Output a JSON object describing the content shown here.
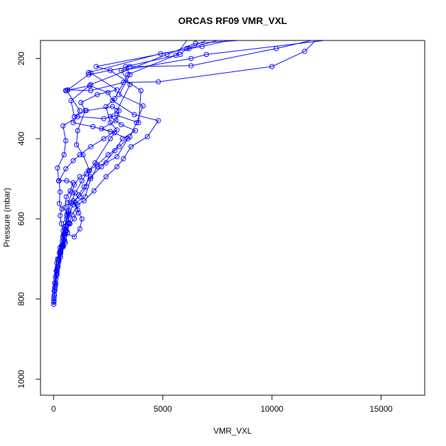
{
  "chart_data": {
    "type": "line",
    "title": "ORCAS RF09 VMR_VXL",
    "xlabel": "VMR_VXL",
    "ylabel": "Pressure (mbar)",
    "xlim": [
      -600,
      17000
    ],
    "ylim": [
      1040,
      155
    ],
    "y_reversed": true,
    "grid": false,
    "x_ticks": [
      0,
      5000,
      10000,
      15000
    ],
    "y_ticks": [
      200,
      400,
      600,
      800,
      1000
    ],
    "series_color": "#0000ff",
    "series": [
      {
        "values": [
          [
            10,
            813
          ],
          [
            15,
            805
          ],
          [
            20,
            795
          ],
          [
            25,
            780
          ],
          [
            50,
            760
          ],
          [
            90,
            745
          ],
          [
            120,
            730
          ],
          [
            150,
            710
          ],
          [
            180,
            700
          ],
          [
            260,
            685
          ],
          [
            300,
            672
          ],
          [
            350,
            668
          ],
          [
            400,
            655
          ],
          [
            450,
            640
          ],
          [
            500,
            625
          ],
          [
            550,
            610
          ],
          [
            650,
            585
          ],
          [
            800,
            560
          ],
          [
            1000,
            535
          ],
          [
            1300,
            505
          ],
          [
            1600,
            480
          ],
          [
            2000,
            465
          ],
          [
            2500,
            440
          ],
          [
            3000,
            420
          ],
          [
            3500,
            395
          ],
          [
            3800,
            360
          ],
          [
            4100,
            318
          ],
          [
            3000,
            290
          ],
          [
            3500,
            240
          ],
          [
            3300,
            220
          ],
          [
            5800,
            190
          ],
          [
            6100,
            175
          ],
          [
            7000,
            155
          ]
        ]
      },
      {
        "values": [
          [
            10,
            808
          ],
          [
            40,
            790
          ],
          [
            70,
            770
          ],
          [
            110,
            750
          ],
          [
            160,
            725
          ],
          [
            240,
            705
          ],
          [
            330,
            685
          ],
          [
            450,
            668
          ],
          [
            420,
            645
          ],
          [
            500,
            620
          ],
          [
            600,
            600
          ],
          [
            700,
            588
          ],
          [
            900,
            565
          ],
          [
            1150,
            540
          ],
          [
            1400,
            520
          ],
          [
            1700,
            495
          ],
          [
            2200,
            470
          ],
          [
            2800,
            430
          ],
          [
            3150,
            400
          ],
          [
            3750,
            380
          ],
          [
            3100,
            365
          ],
          [
            2600,
            345
          ],
          [
            2900,
            330
          ],
          [
            3500,
            265
          ],
          [
            3100,
            230
          ],
          [
            6300,
            200
          ],
          [
            7000,
            190
          ],
          [
            12400,
            155
          ]
        ]
      },
      {
        "values": [
          [
            20,
            800
          ],
          [
            60,
            775
          ],
          [
            130,
            740
          ],
          [
            200,
            715
          ],
          [
            300,
            690
          ],
          [
            380,
            668
          ],
          [
            450,
            650
          ],
          [
            550,
            630
          ],
          [
            700,
            612
          ],
          [
            850,
            590
          ],
          [
            1100,
            565
          ],
          [
            1400,
            555
          ],
          [
            1850,
            530
          ],
          [
            2400,
            495
          ],
          [
            2900,
            470
          ],
          [
            3200,
            450
          ],
          [
            3550,
            420
          ],
          [
            4300,
            395
          ],
          [
            4800,
            355
          ],
          [
            3700,
            340
          ],
          [
            2700,
            305
          ],
          [
            2500,
            285
          ],
          [
            1650,
            268
          ],
          [
            550,
            280
          ],
          [
            650,
            278
          ],
          [
            1700,
            280
          ],
          [
            3200,
            260
          ],
          [
            4800,
            258
          ],
          [
            10000,
            220
          ],
          [
            11500,
            182
          ],
          [
            12000,
            155
          ]
        ]
      },
      {
        "values": [
          [
            30,
            790
          ],
          [
            100,
            760
          ],
          [
            180,
            720
          ],
          [
            250,
            700
          ],
          [
            330,
            680
          ],
          [
            420,
            660
          ],
          [
            500,
            635
          ],
          [
            950,
            645
          ],
          [
            1200,
            625
          ],
          [
            1300,
            600
          ],
          [
            1150,
            585
          ],
          [
            1000,
            560
          ],
          [
            1450,
            545
          ],
          [
            1700,
            500
          ],
          [
            2000,
            470
          ],
          [
            2400,
            460
          ],
          [
            2900,
            445
          ],
          [
            3400,
            400
          ],
          [
            2600,
            382
          ],
          [
            1800,
            370
          ],
          [
            900,
            360
          ],
          [
            1200,
            330
          ],
          [
            600,
            280
          ],
          [
            1600,
            240
          ],
          [
            3500,
            220
          ],
          [
            6300,
            218
          ],
          [
            10200,
            175
          ],
          [
            11800,
            155
          ]
        ]
      },
      {
        "values": [
          [
            50,
            780
          ],
          [
            150,
            735
          ],
          [
            220,
            705
          ],
          [
            300,
            680
          ],
          [
            400,
            665
          ],
          [
            500,
            645
          ],
          [
            600,
            630
          ],
          [
            750,
            612
          ],
          [
            950,
            600
          ],
          [
            1100,
            578
          ],
          [
            900,
            555
          ],
          [
            1200,
            545
          ],
          [
            1500,
            520
          ],
          [
            1650,
            480
          ],
          [
            1350,
            440
          ],
          [
            1050,
            415
          ],
          [
            1100,
            380
          ],
          [
            1450,
            330
          ],
          [
            1250,
            310
          ],
          [
            2000,
            290
          ],
          [
            2900,
            278
          ],
          [
            1700,
            236
          ],
          [
            1600,
            235
          ],
          [
            4900,
            188
          ],
          [
            6800,
            170
          ],
          [
            8000,
            155
          ]
        ]
      },
      {
        "values": [
          [
            90,
            765
          ],
          [
            160,
            730
          ],
          [
            240,
            700
          ],
          [
            330,
            678
          ],
          [
            420,
            665
          ],
          [
            480,
            640
          ],
          [
            550,
            618
          ],
          [
            620,
            595
          ],
          [
            700,
            580
          ],
          [
            650,
            560
          ],
          [
            850,
            535
          ],
          [
            950,
            515
          ],
          [
            1200,
            495
          ],
          [
            1500,
            488
          ],
          [
            1900,
            460
          ],
          [
            2600,
            400
          ],
          [
            2800,
            385
          ],
          [
            2200,
            375
          ],
          [
            2850,
            355
          ],
          [
            3000,
            330
          ],
          [
            2700,
            320
          ],
          [
            1500,
            330
          ],
          [
            950,
            345
          ],
          [
            800,
            305
          ],
          [
            1700,
            265
          ],
          [
            5200,
            190
          ],
          [
            6500,
            162
          ],
          [
            8500,
            155
          ]
        ]
      },
      {
        "values": [
          [
            200,
            720
          ],
          [
            320,
            695
          ],
          [
            430,
            670
          ],
          [
            530,
            660
          ],
          [
            640,
            635
          ],
          [
            710,
            610
          ],
          [
            600,
            590
          ],
          [
            520,
            572
          ],
          [
            580,
            545
          ],
          [
            760,
            530
          ],
          [
            900,
            510
          ],
          [
            600,
            505
          ],
          [
            230,
            505
          ],
          [
            180,
            473
          ],
          [
            480,
            440
          ],
          [
            560,
            405
          ],
          [
            430,
            368
          ],
          [
            1100,
            345
          ],
          [
            2300,
            350
          ],
          [
            2900,
            342
          ],
          [
            3900,
            360
          ],
          [
            4000,
            280
          ],
          [
            2600,
            230
          ],
          [
            1950,
            220
          ],
          [
            6200,
            175
          ],
          [
            7500,
            155
          ]
        ]
      },
      {
        "values": [
          [
            60,
            770
          ],
          [
            150,
            740
          ],
          [
            220,
            710
          ],
          [
            310,
            685
          ],
          [
            420,
            668
          ],
          [
            520,
            655
          ],
          [
            440,
            630
          ],
          [
            360,
            612
          ],
          [
            300,
            592
          ],
          [
            380,
            575
          ],
          [
            260,
            562
          ],
          [
            300,
            533
          ],
          [
            250,
            505
          ],
          [
            560,
            475
          ],
          [
            900,
            455
          ],
          [
            1200,
            440
          ],
          [
            1700,
            420
          ],
          [
            2300,
            400
          ],
          [
            2900,
            378
          ],
          [
            2600,
            360
          ],
          [
            2400,
            320
          ],
          [
            2800,
            300
          ],
          [
            3400,
            240
          ],
          [
            5600,
            192
          ],
          [
            6100,
            155
          ]
        ]
      }
    ]
  }
}
